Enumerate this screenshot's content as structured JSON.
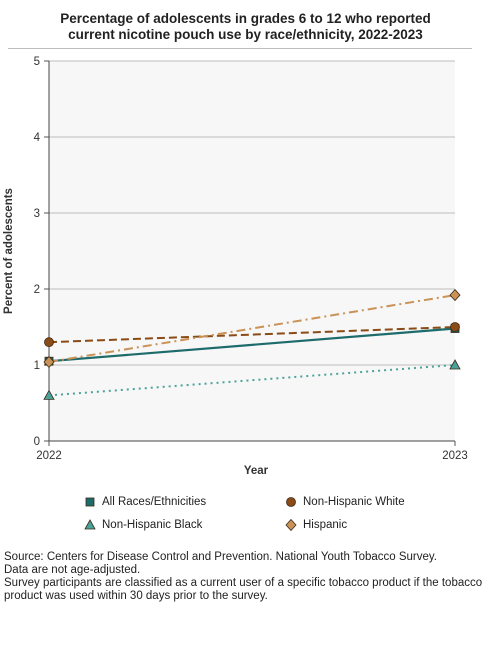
{
  "chart_data": {
    "type": "line",
    "title_lines": [
      "Percentage of adolescents in grades 6 to 12 who reported",
      "current nicotine pouch use by race/ethnicity, 2022-2023"
    ],
    "xlabel": "Year",
    "ylabel": "Percent of adolescents",
    "x": [
      "2022",
      "2023"
    ],
    "ylim": [
      0,
      5
    ],
    "yticks": [
      "0",
      "1",
      "2",
      "3",
      "4",
      "5"
    ],
    "grid": true,
    "legend_position": "bottom",
    "series": [
      {
        "name": "All Races/Ethnicities",
        "values": [
          1.05,
          1.48
        ],
        "color": "#1d6b6b",
        "marker": "square",
        "style": "solid"
      },
      {
        "name": "Non-Hispanic White",
        "values": [
          1.3,
          1.5
        ],
        "color": "#8a4b16",
        "marker": "circle",
        "style": "dashed"
      },
      {
        "name": "Non-Hispanic Black",
        "values": [
          0.6,
          1.0
        ],
        "color": "#4aa39a",
        "marker": "triangle",
        "style": "dotted"
      },
      {
        "name": "Hispanic",
        "values": [
          1.04,
          1.92
        ],
        "color": "#c99257",
        "marker": "diamond",
        "style": "dashdot"
      }
    ]
  },
  "footer": {
    "source": "Source: Centers for Disease Control and Prevention. National Youth Tobacco Survey.",
    "note": "Data are not age-adjusted.",
    "definition": "Survey participants are classified as a current user of a specific tobacco product if the tobacco product was used within 30 days prior to the survey."
  }
}
